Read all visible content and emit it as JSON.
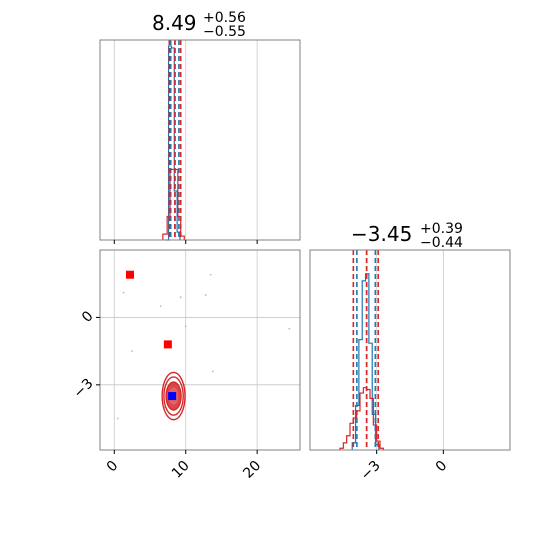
{
  "chart_data": [
    {
      "type": "histogram",
      "panel": "marginal-1",
      "title": {
        "value": "8.49",
        "plus": "+0.56",
        "minus": "−0.55"
      },
      "xlim": [
        -2,
        26
      ],
      "xticks": [
        0,
        10,
        20
      ],
      "grid": true,
      "series": [
        {
          "color": "#1f77b4",
          "style": "step",
          "bins": [
            [
              7.2,
              7.6,
              0.0
            ],
            [
              7.6,
              8.0,
              0.99
            ],
            [
              8.0,
              8.4,
              0.98
            ],
            [
              8.4,
              8.8,
              0.25
            ],
            [
              8.8,
              9.2,
              0.04
            ]
          ],
          "quantiles": [
            7.9,
            8.49,
            9.05
          ]
        },
        {
          "color": "#d62728",
          "style": "step",
          "bins": [
            [
              6.8,
              7.4,
              0.03
            ],
            [
              7.4,
              7.8,
              0.12
            ],
            [
              7.8,
              8.3,
              0.36
            ],
            [
              8.3,
              8.9,
              0.36
            ],
            [
              8.9,
              9.3,
              0.12
            ],
            [
              9.3,
              9.8,
              0.02
            ]
          ],
          "quantiles": [
            7.7,
            8.49,
            9.3
          ]
        }
      ]
    },
    {
      "type": "scatter",
      "panel": "joint",
      "xlim": [
        -2,
        26
      ],
      "ylim": [
        -5.9,
        3.0
      ],
      "xticks": [
        "0",
        "10",
        "20"
      ],
      "yticks": [
        "0",
        "−3"
      ],
      "grid": true,
      "contours": [
        {
          "cx": 8.3,
          "cy": -3.5,
          "rx": 1.6,
          "ry": 1.05,
          "color": "#d62728",
          "filled": false
        },
        {
          "cx": 8.3,
          "cy": -3.5,
          "rx": 1.35,
          "ry": 0.85,
          "color": "#d62728",
          "filled": false
        },
        {
          "cx": 8.3,
          "cy": -3.5,
          "rx": 1.05,
          "ry": 0.62,
          "color": "#d62728",
          "filled": true
        },
        {
          "cx": 8.3,
          "cy": -3.5,
          "rx": 0.55,
          "ry": 0.35,
          "color": "#e06666",
          "filled": true
        }
      ],
      "points": [
        {
          "x": 2.2,
          "y": 1.9,
          "color": "#ff0000",
          "marker": "square"
        },
        {
          "x": 7.5,
          "y": -1.2,
          "color": "#ff0000",
          "marker": "square"
        },
        {
          "x": 8.1,
          "y": -3.5,
          "color": "#0000ff",
          "marker": "square"
        }
      ],
      "faint_points": [
        [
          1.3,
          1.1
        ],
        [
          6.5,
          0.5
        ],
        [
          9.3,
          0.9
        ],
        [
          12.8,
          1.0
        ],
        [
          13.5,
          1.9
        ],
        [
          10.0,
          -0.4
        ],
        [
          2.5,
          -1.5
        ],
        [
          13.8,
          -2.4
        ],
        [
          0.5,
          -4.5
        ],
        [
          24.5,
          -0.5
        ],
        [
          6.8,
          -3.2
        ],
        [
          9.8,
          -3.0
        ],
        [
          7.1,
          -4.0
        ]
      ]
    },
    {
      "type": "histogram",
      "panel": "marginal-2",
      "title": {
        "value": "−3.45",
        "plus": "+0.39",
        "minus": "−0.44"
      },
      "xlim": [
        -6.0,
        3.0
      ],
      "xticks": [
        -3,
        0
      ],
      "xticklabels": [
        "−3",
        "0"
      ],
      "grid": true,
      "series": [
        {
          "color": "#1f77b4",
          "style": "step",
          "bins": [
            [
              -4.1,
              -3.95,
              0.04
            ],
            [
              -3.95,
              -3.8,
              0.25
            ],
            [
              -3.8,
              -3.65,
              0.62
            ],
            [
              -3.65,
              -3.5,
              0.95
            ],
            [
              -3.5,
              -3.35,
              0.99
            ],
            [
              -3.35,
              -3.2,
              0.6
            ],
            [
              -3.2,
              -3.05,
              0.2
            ],
            [
              -3.05,
              -2.9,
              0.03
            ]
          ],
          "quantiles": [
            -3.89,
            -3.45,
            -3.06
          ]
        },
        {
          "color": "#d62728",
          "style": "step",
          "bins": [
            [
              -4.65,
              -4.5,
              0.01
            ],
            [
              -4.5,
              -4.35,
              0.04
            ],
            [
              -4.35,
              -4.2,
              0.08
            ],
            [
              -4.2,
              -4.05,
              0.15
            ],
            [
              -4.05,
              -3.9,
              0.18
            ],
            [
              -3.9,
              -3.75,
              0.22
            ],
            [
              -3.75,
              -3.6,
              0.32
            ],
            [
              -3.6,
              -3.45,
              0.35
            ],
            [
              -3.45,
              -3.3,
              0.34
            ],
            [
              -3.3,
              -3.15,
              0.29
            ],
            [
              -3.15,
              -3.0,
              0.14
            ],
            [
              -3.0,
              -2.85,
              0.05
            ],
            [
              -2.85,
              -2.7,
              0.01
            ]
          ],
          "quantiles": [
            -4.05,
            -3.45,
            -2.93
          ]
        }
      ]
    }
  ]
}
